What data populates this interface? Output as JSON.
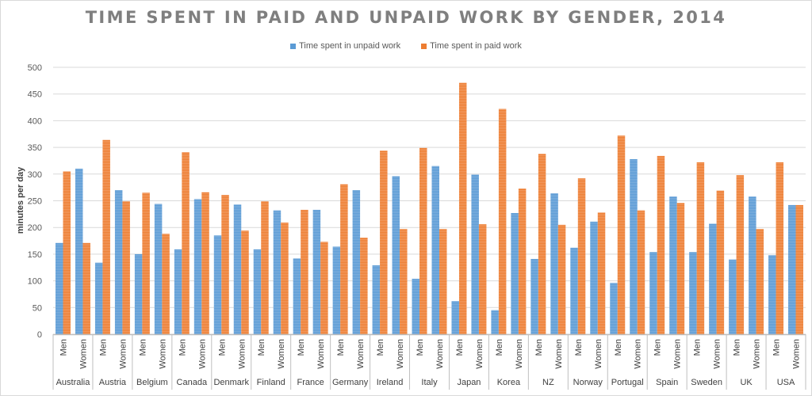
{
  "chart_data": {
    "type": "bar",
    "title": "TIME SPENT IN PAID AND UNPAID WORK BY GENDER, 2014",
    "xlabel": "",
    "ylabel": "minutes per day",
    "ylim": [
      0,
      500
    ],
    "yticks": [
      0,
      50,
      100,
      150,
      200,
      250,
      300,
      350,
      400,
      450,
      500
    ],
    "grid": true,
    "legend_position": "top",
    "groups": [
      "Australia",
      "Austria",
      "Belgium",
      "Canada",
      "Denmark",
      "Finland",
      "France",
      "Germany",
      "Ireland",
      "Italy",
      "Japan",
      "Korea",
      "NZ",
      "Norway",
      "Portugal",
      "Spain",
      "Sweden",
      "UK",
      "USA"
    ],
    "subcategories": [
      "Men",
      "Women"
    ],
    "series": [
      {
        "name": "Time spent in unpaid work",
        "color": "#5b9bd5",
        "values": [
          171,
          310,
          134,
          270,
          150,
          244,
          159,
          253,
          185,
          243,
          159,
          232,
          142,
          233,
          164,
          270,
          129,
          296,
          104,
          315,
          62,
          299,
          45,
          227,
          141,
          264,
          162,
          211,
          96,
          328,
          154,
          258,
          154,
          207,
          140,
          258,
          148,
          242
        ]
      },
      {
        "name": "Time spent in paid work",
        "color": "#ed7d31",
        "values": [
          305,
          171,
          364,
          249,
          265,
          188,
          341,
          266,
          261,
          194,
          249,
          209,
          233,
          173,
          281,
          181,
          344,
          197,
          349,
          197,
          471,
          206,
          422,
          273,
          338,
          205,
          292,
          228,
          372,
          232,
          334,
          246,
          322,
          269,
          298,
          197,
          322,
          242
        ]
      }
    ]
  }
}
